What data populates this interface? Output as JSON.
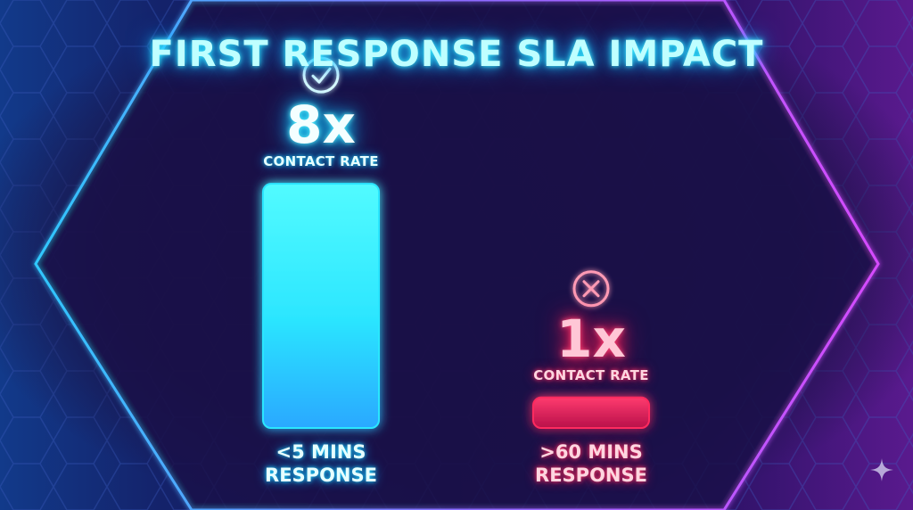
{
  "chart_data": {
    "type": "bar",
    "title": "FIRST RESPONSE SLA IMPACT",
    "categories": [
      "<5 MINS\nRESPONSE",
      ">60 MINS\nRESPONSE"
    ],
    "values": [
      8,
      1
    ],
    "value_labels": [
      "8x",
      "1x"
    ],
    "value_sublabel": "CONTACT RATE",
    "status_icons": [
      "check-circle-icon",
      "x-circle-icon"
    ],
    "xlabel": "",
    "ylabel": "",
    "ylim": [
      0,
      10.4
    ],
    "grid": false,
    "axis_ticks": false
  },
  "colors": {
    "title_glow": "#19c8ff",
    "good": "#2ce6ff",
    "bad": "#ff2a5e",
    "axis": "#d89cff",
    "frame_left": "#2fc8ff",
    "frame_right": "#d64bff"
  },
  "icons": {
    "corner": "sparkle-icon"
  }
}
